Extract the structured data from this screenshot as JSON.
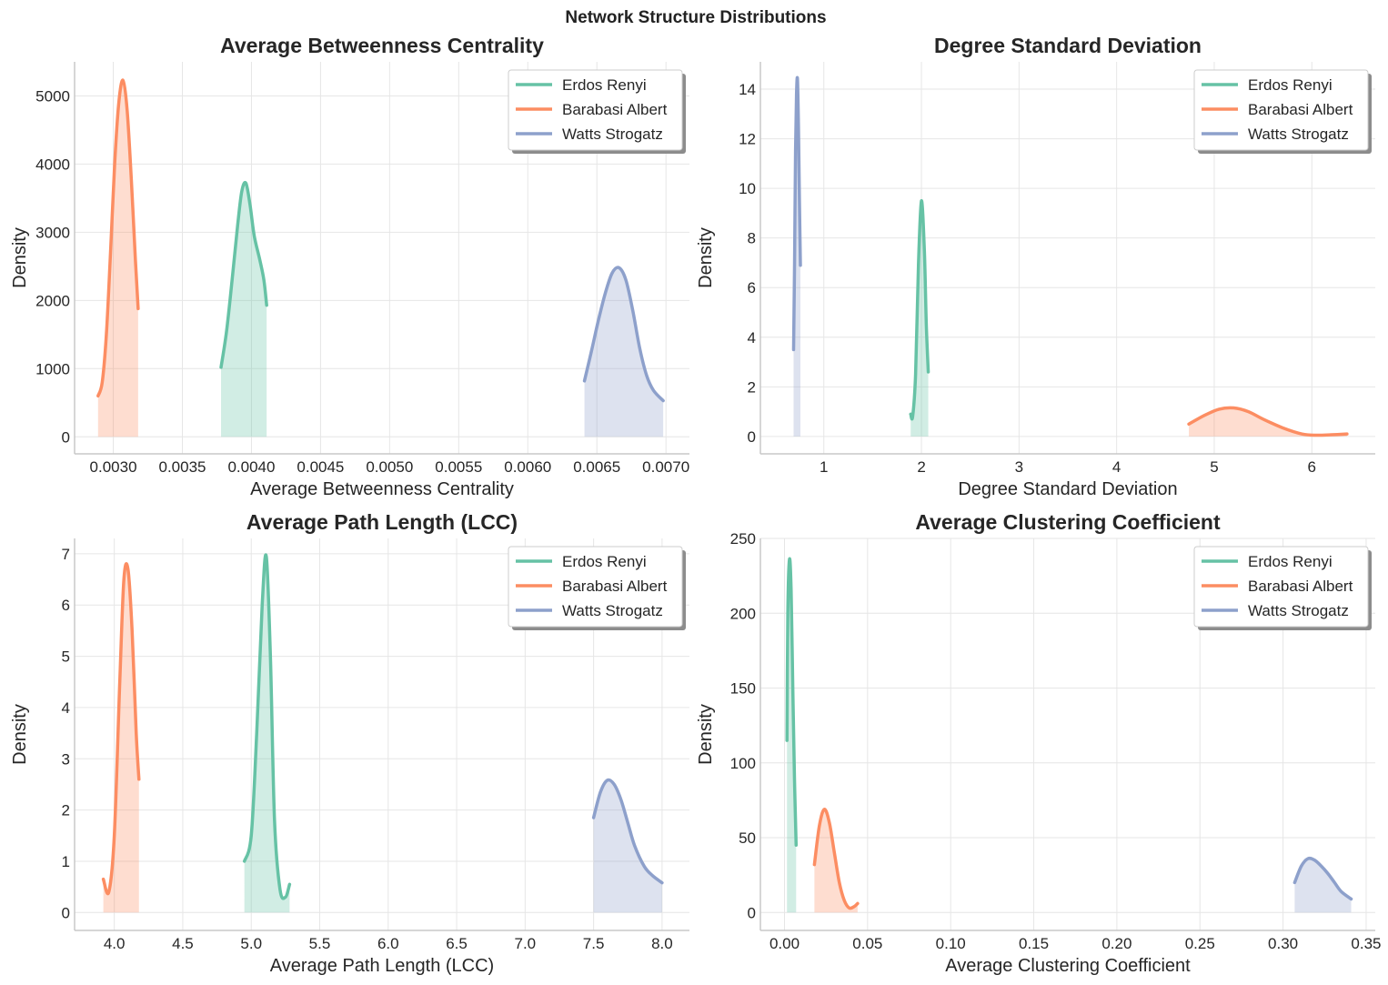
{
  "figure": {
    "suptitle": "Network Structure Distributions",
    "colors": {
      "Erdos Renyi": "#66c2a5",
      "Barabasi Albert": "#fc8d62",
      "Watts Strogatz": "#8da0cb"
    }
  },
  "chart_data": [
    {
      "type": "area",
      "title": "Average Betweenness Centrality",
      "xlabel": "Average Betweenness Centrality",
      "ylabel": "Density",
      "xlim": [
        0.00272,
        0.00717
      ],
      "ylim": [
        -250,
        5500
      ],
      "xticks": [
        0.003,
        0.0035,
        0.004,
        0.0045,
        0.005,
        0.0055,
        0.006,
        0.0065,
        0.007
      ],
      "xtick_labels": [
        "0.0030",
        "0.0035",
        "0.0040",
        "0.0045",
        "0.0050",
        "0.0055",
        "0.0060",
        "0.0065",
        "0.0070"
      ],
      "yticks": [
        0,
        1000,
        2000,
        3000,
        4000,
        5000
      ],
      "ytick_labels": [
        "0",
        "1000",
        "2000",
        "3000",
        "4000",
        "5000"
      ],
      "grid": true,
      "legend": "top-right",
      "series": [
        {
          "name": "Erdos Renyi",
          "x": [
            0.00378,
            0.00382,
            0.00386,
            0.0039,
            0.00393,
            0.00396,
            0.00399,
            0.00402,
            0.00406,
            0.00409,
            0.00411
          ],
          "y": [
            1020,
            1550,
            2300,
            3100,
            3600,
            3720,
            3400,
            2950,
            2600,
            2300,
            1930
          ]
        },
        {
          "name": "Barabasi Albert",
          "x": [
            0.00289,
            0.00292,
            0.00295,
            0.00298,
            0.00301,
            0.00304,
            0.00307,
            0.0031,
            0.00313,
            0.00316,
            0.00318
          ],
          "y": [
            600,
            800,
            1500,
            2700,
            4000,
            4900,
            5230,
            4800,
            3800,
            2600,
            1880
          ]
        },
        {
          "name": "Watts Strogatz",
          "x": [
            0.00641,
            0.00646,
            0.00651,
            0.00656,
            0.00661,
            0.00666,
            0.00671,
            0.00676,
            0.00681,
            0.00686,
            0.00691,
            0.00698
          ],
          "y": [
            820,
            1250,
            1700,
            2100,
            2400,
            2480,
            2300,
            1850,
            1300,
            900,
            680,
            530
          ]
        }
      ]
    },
    {
      "type": "area",
      "title": "Degree Standard Deviation",
      "xlabel": "Degree Standard Deviation",
      "ylabel": "Density",
      "xlim": [
        0.35,
        6.65
      ],
      "ylim": [
        -0.7,
        15.1
      ],
      "xticks": [
        1,
        2,
        3,
        4,
        5,
        6
      ],
      "xtick_labels": [
        "1",
        "2",
        "3",
        "4",
        "5",
        "6"
      ],
      "yticks": [
        0,
        2,
        4,
        6,
        8,
        10,
        12,
        14
      ],
      "ytick_labels": [
        "0",
        "2",
        "4",
        "6",
        "8",
        "10",
        "12",
        "14"
      ],
      "grid": true,
      "legend": "top-right",
      "series": [
        {
          "name": "Erdos Renyi",
          "x": [
            1.89,
            1.91,
            1.94,
            1.97,
            2.0,
            2.03,
            2.05,
            2.07
          ],
          "y": [
            0.9,
            0.8,
            2.5,
            7.0,
            9.5,
            7.5,
            4.5,
            2.6
          ]
        },
        {
          "name": "Barabasi Albert",
          "x": [
            4.74,
            4.9,
            5.05,
            5.2,
            5.35,
            5.5,
            5.7,
            5.9,
            6.05,
            6.2,
            6.36
          ],
          "y": [
            0.5,
            0.85,
            1.1,
            1.15,
            1.0,
            0.7,
            0.35,
            0.1,
            0.05,
            0.07,
            0.1
          ]
        },
        {
          "name": "Watts Strogatz",
          "x": [
            0.69,
            0.7,
            0.71,
            0.72,
            0.73,
            0.74,
            0.75,
            0.76
          ],
          "y": [
            3.5,
            7.0,
            11.5,
            13.8,
            14.4,
            12.5,
            9.5,
            6.9
          ]
        }
      ]
    },
    {
      "type": "area",
      "title": "Average Path Length (LCC)",
      "xlabel": "Average Path Length (LCC)",
      "ylabel": "Density",
      "xlim": [
        3.71,
        8.2
      ],
      "ylim": [
        -0.35,
        7.3
      ],
      "xticks": [
        4.0,
        4.5,
        5.0,
        5.5,
        6.0,
        6.5,
        7.0,
        7.5,
        8.0
      ],
      "xtick_labels": [
        "4.0",
        "4.5",
        "5.0",
        "5.5",
        "6.0",
        "6.5",
        "7.0",
        "7.5",
        "8.0"
      ],
      "yticks": [
        0,
        1,
        2,
        3,
        4,
        5,
        6,
        7
      ],
      "ytick_labels": [
        "0",
        "1",
        "2",
        "3",
        "4",
        "5",
        "6",
        "7"
      ],
      "grid": true,
      "legend": "top-right",
      "series": [
        {
          "name": "Erdos Renyi",
          "x": [
            4.95,
            5.0,
            5.04,
            5.08,
            5.11,
            5.14,
            5.17,
            5.21,
            5.25,
            5.28
          ],
          "y": [
            1.0,
            1.5,
            3.5,
            6.0,
            6.95,
            5.0,
            1.8,
            0.45,
            0.3,
            0.55
          ]
        },
        {
          "name": "Barabasi Albert",
          "x": [
            3.92,
            3.96,
            4.0,
            4.04,
            4.07,
            4.1,
            4.13,
            4.16,
            4.18
          ],
          "y": [
            0.65,
            0.4,
            1.5,
            4.5,
            6.5,
            6.7,
            5.5,
            3.5,
            2.6
          ]
        },
        {
          "name": "Watts Strogatz",
          "x": [
            7.5,
            7.55,
            7.6,
            7.65,
            7.7,
            7.75,
            7.8,
            7.87,
            7.93,
            8.0
          ],
          "y": [
            1.85,
            2.35,
            2.58,
            2.5,
            2.2,
            1.75,
            1.3,
            0.9,
            0.72,
            0.58
          ]
        }
      ]
    },
    {
      "type": "area",
      "title": "Average Clustering Coefficient",
      "xlabel": "Average Clustering Coefficient",
      "ylabel": "Density",
      "xlim": [
        -0.0145,
        0.3555
      ],
      "ylim": [
        -12,
        250
      ],
      "xticks": [
        0.0,
        0.05,
        0.1,
        0.15,
        0.2,
        0.25,
        0.3,
        0.35
      ],
      "xtick_labels": [
        "0.00",
        "0.05",
        "0.10",
        "0.15",
        "0.20",
        "0.25",
        "0.30",
        "0.35"
      ],
      "yticks": [
        0,
        50,
        100,
        150,
        200,
        250
      ],
      "ytick_labels": [
        "0",
        "50",
        "100",
        "150",
        "200",
        "250"
      ],
      "grid": true,
      "legend": "top-right",
      "series": [
        {
          "name": "Erdos Renyi",
          "x": [
            0.0015,
            0.002,
            0.003,
            0.004,
            0.005,
            0.006,
            0.007
          ],
          "y": [
            115,
            200,
            236,
            215,
            150,
            90,
            45
          ]
        },
        {
          "name": "Barabasi Albert",
          "x": [
            0.018,
            0.021,
            0.024,
            0.027,
            0.03,
            0.033,
            0.036,
            0.039,
            0.042,
            0.044
          ],
          "y": [
            32,
            58,
            69,
            60,
            40,
            20,
            8,
            3,
            4,
            6
          ]
        },
        {
          "name": "Watts Strogatz",
          "x": [
            0.307,
            0.311,
            0.315,
            0.319,
            0.323,
            0.327,
            0.331,
            0.335,
            0.341
          ],
          "y": [
            20,
            31,
            36,
            35,
            31,
            26,
            20,
            14,
            9
          ]
        }
      ]
    }
  ]
}
